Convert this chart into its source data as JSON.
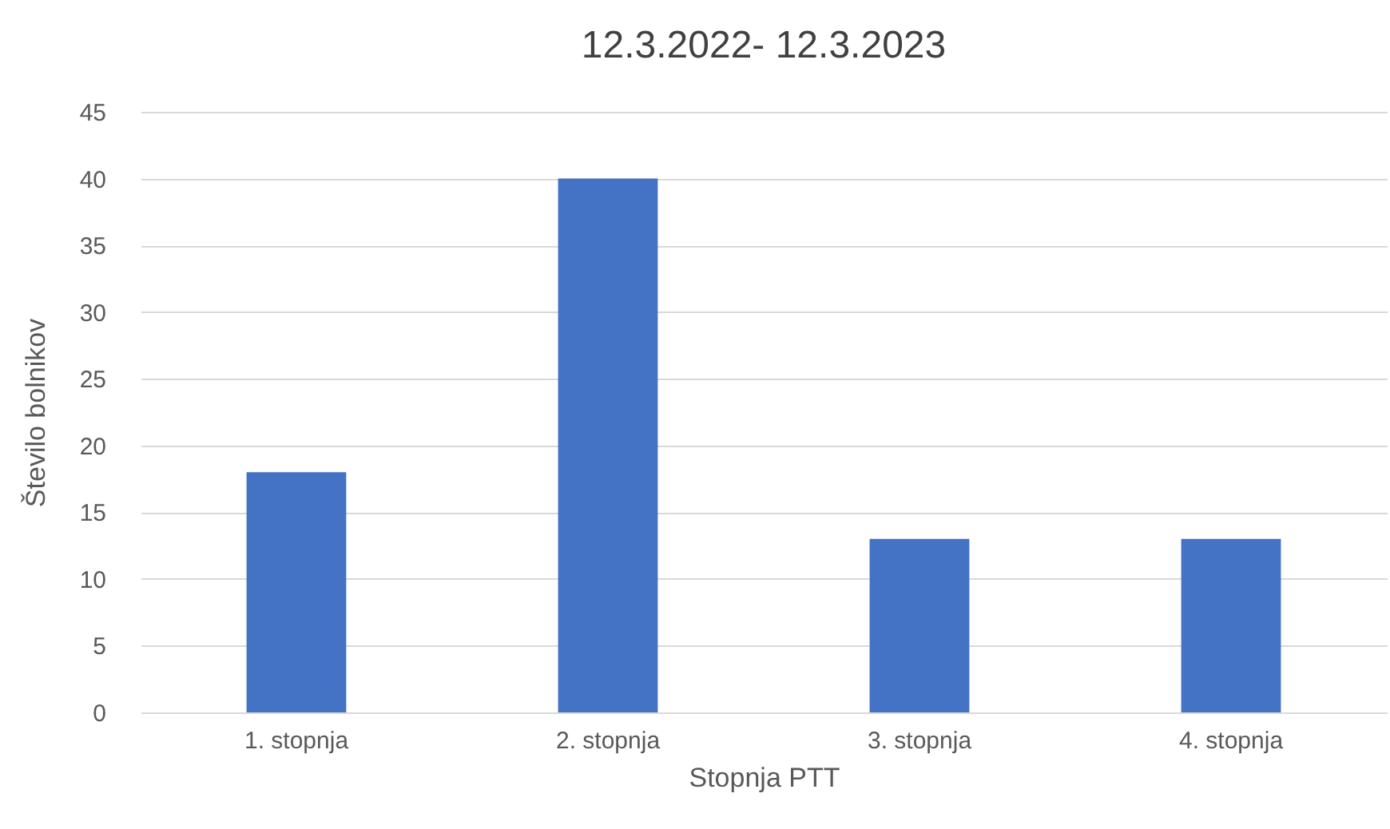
{
  "chart_data": {
    "type": "bar",
    "title": "12.3.2022- 12.3.2023",
    "xlabel": "Stopnja PTT",
    "ylabel": "Število bolnikov",
    "categories": [
      "1. stopnja",
      "2. stopnja",
      "3. stopnja",
      "4. stopnja"
    ],
    "values": [
      18,
      40,
      13,
      13
    ],
    "color": "#4472c4",
    "ylim": [
      0,
      45
    ],
    "yticks": [
      0,
      5,
      10,
      15,
      20,
      25,
      30,
      35,
      40,
      45
    ],
    "grid": "y"
  }
}
